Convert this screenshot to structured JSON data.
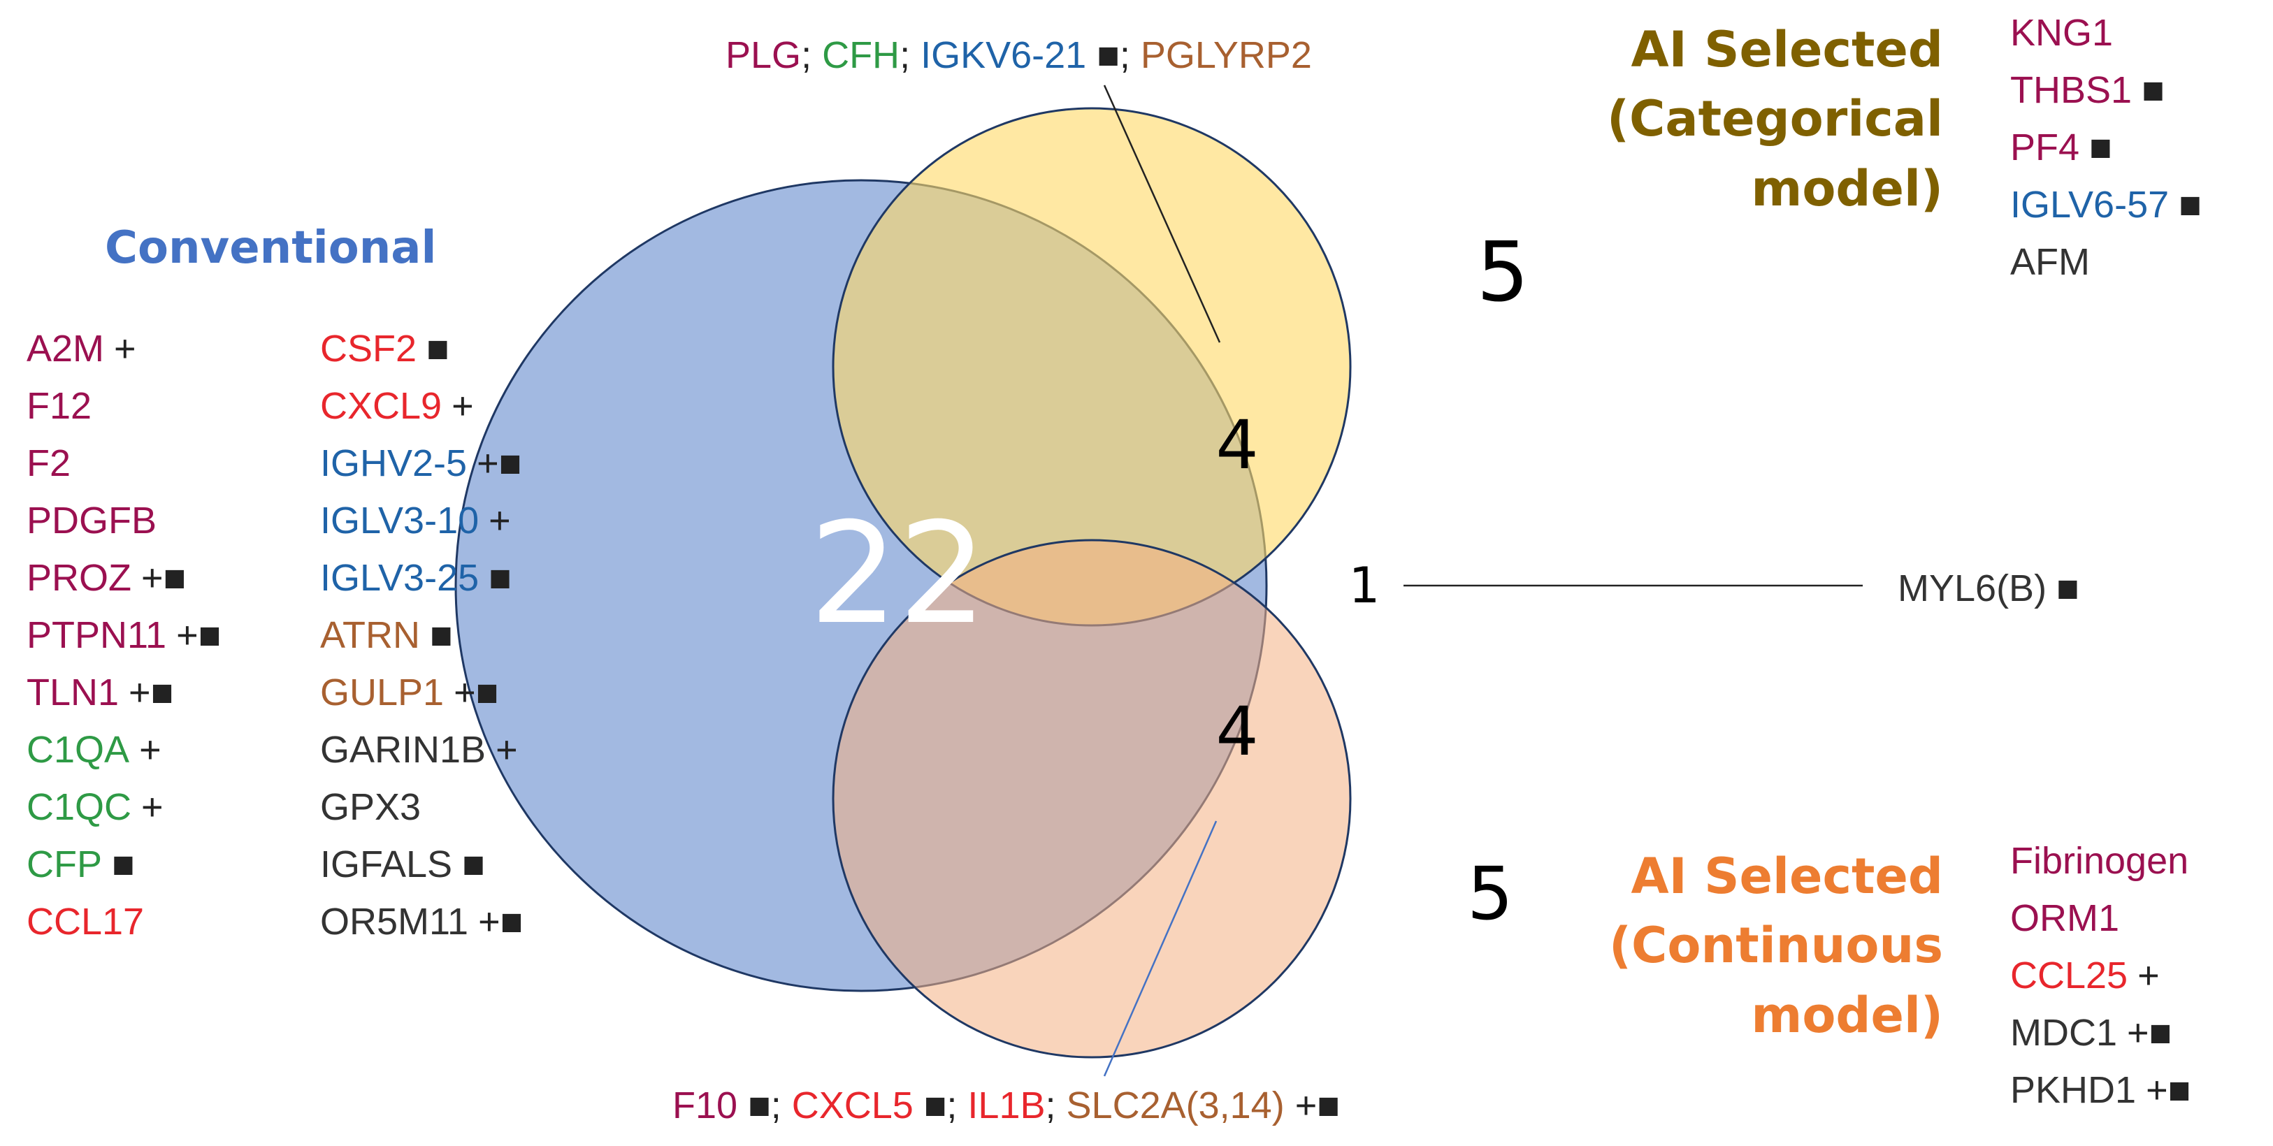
{
  "colors": {
    "conventional": "#4472C4",
    "categorical": "#7F6000",
    "continuous": "#ED7D31",
    "coagulation": "#9B1050",
    "complement": "#2E9A45",
    "cytokine": "#E8262C",
    "immunoglobulin": "#1F63A8",
    "transport": "#A86030",
    "other": "#333333",
    "blue_circle": "#8EAADB",
    "yellow_circle": "#FFD966",
    "orange_circle": "#F4B183"
  },
  "sets": [
    {
      "name": "Conventional",
      "title_lines": [
        "Conventional"
      ]
    },
    {
      "name": "AI Selected (Categorical model)",
      "title_lines": [
        "AI Selected",
        "(Categorical",
        "model)"
      ]
    },
    {
      "name": "AI Selected (Continuous model)",
      "title_lines": [
        "AI Selected",
        "(Continuous",
        "model)"
      ]
    }
  ],
  "region_counts": {
    "conventional_only": "22",
    "categorical_only": "5",
    "continuous_only": "5",
    "conventional_categorical": "4",
    "conventional_continuous": "4",
    "all_three": "1"
  },
  "conventional_genes": [
    {
      "name": "A2M",
      "mark": "+",
      "group": "coagulation"
    },
    {
      "name": "F12",
      "mark": "",
      "group": "coagulation"
    },
    {
      "name": "F2",
      "mark": "",
      "group": "coagulation"
    },
    {
      "name": "PDGFB",
      "mark": "",
      "group": "coagulation"
    },
    {
      "name": "PROZ",
      "mark": "+■",
      "group": "coagulation"
    },
    {
      "name": "PTPN11",
      "mark": "+■",
      "group": "coagulation"
    },
    {
      "name": "TLN1",
      "mark": "+■",
      "group": "coagulation"
    },
    {
      "name": "C1QA",
      "mark": "+",
      "group": "complement"
    },
    {
      "name": "C1QC",
      "mark": "+",
      "group": "complement"
    },
    {
      "name": "CFP",
      "mark": "■",
      "group": "complement"
    },
    {
      "name": "CCL17",
      "mark": "",
      "group": "cytokine"
    },
    {
      "name": "CSF2",
      "mark": "■",
      "group": "cytokine"
    },
    {
      "name": "CXCL9",
      "mark": "+",
      "group": "cytokine"
    },
    {
      "name": "IGHV2-5",
      "mark": "+■",
      "group": "immunoglobulin"
    },
    {
      "name": "IGLV3-10",
      "mark": "+",
      "group": "immunoglobulin"
    },
    {
      "name": "IGLV3-25",
      "mark": "■",
      "group": "immunoglobulin"
    },
    {
      "name": "ATRN",
      "mark": "■",
      "group": "transport"
    },
    {
      "name": "GULP1",
      "mark": "+■",
      "group": "transport"
    },
    {
      "name": "GARIN1B",
      "mark": "+",
      "group": "other"
    },
    {
      "name": "GPX3",
      "mark": "",
      "group": "other"
    },
    {
      "name": "IGFALS",
      "mark": "■",
      "group": "other"
    },
    {
      "name": "OR5M11",
      "mark": "+■",
      "group": "other"
    }
  ],
  "categorical_genes": [
    {
      "name": "KNG1",
      "mark": "",
      "group": "coagulation"
    },
    {
      "name": "THBS1",
      "mark": "■",
      "group": "coagulation"
    },
    {
      "name": "PF4",
      "mark": "■",
      "group": "coagulation"
    },
    {
      "name": "IGLV6-57",
      "mark": "■",
      "group": "immunoglobulin"
    },
    {
      "name": "AFM",
      "mark": "",
      "group": "other"
    }
  ],
  "continuous_genes": [
    {
      "name": "Fibrinogen",
      "mark": "",
      "group": "coagulation"
    },
    {
      "name": "ORM1",
      "mark": "",
      "group": "coagulation"
    },
    {
      "name": "CCL25",
      "mark": "+",
      "group": "cytokine"
    },
    {
      "name": "MDC1",
      "mark": "+■",
      "group": "other"
    },
    {
      "name": "PKHD1",
      "mark": "+■",
      "group": "other"
    }
  ],
  "conv_cat_genes": [
    {
      "name": "PLG",
      "mark": "",
      "group": "coagulation"
    },
    {
      "name": "CFH",
      "mark": "",
      "group": "complement"
    },
    {
      "name": "IGKV6-21",
      "mark": "■",
      "group": "immunoglobulin"
    },
    {
      "name": "PGLYRP2",
      "mark": "",
      "group": "transport"
    }
  ],
  "conv_cont_genes": [
    {
      "name": "F10",
      "mark": "■",
      "group": "coagulation"
    },
    {
      "name": "CXCL5",
      "mark": "■",
      "group": "cytokine"
    },
    {
      "name": "IL1B",
      "mark": "",
      "group": "cytokine"
    },
    {
      "name": "SLC2A(3,14)",
      "mark": "+■",
      "group": "transport"
    }
  ],
  "all_three_genes": [
    {
      "name": "MYL6(B)",
      "mark": "■",
      "group": "other"
    }
  ]
}
